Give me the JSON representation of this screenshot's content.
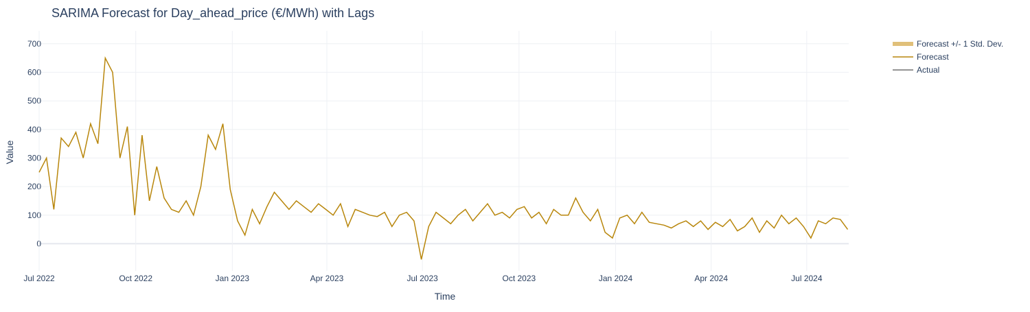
{
  "chart_data": {
    "type": "line",
    "title": "SARIMA Forecast for Day_ahead_price (€/MWh) with Lags",
    "x_label": "Time",
    "y_label": "Value",
    "x": [
      "2022-07-01",
      "2022-07-08",
      "2022-07-15",
      "2022-07-22",
      "2022-07-29",
      "2022-08-05",
      "2022-08-12",
      "2022-08-19",
      "2022-08-26",
      "2022-09-02",
      "2022-09-09",
      "2022-09-16",
      "2022-09-23",
      "2022-09-30",
      "2022-10-07",
      "2022-10-14",
      "2022-10-21",
      "2022-10-28",
      "2022-11-04",
      "2022-11-11",
      "2022-11-18",
      "2022-11-25",
      "2022-12-02",
      "2022-12-09",
      "2022-12-16",
      "2022-12-23",
      "2022-12-30",
      "2023-01-06",
      "2023-01-13",
      "2023-01-20",
      "2023-01-27",
      "2023-02-03",
      "2023-02-10",
      "2023-02-17",
      "2023-02-24",
      "2023-03-03",
      "2023-03-10",
      "2023-03-17",
      "2023-03-24",
      "2023-03-31",
      "2023-04-07",
      "2023-04-14",
      "2023-04-21",
      "2023-04-28",
      "2023-05-05",
      "2023-05-12",
      "2023-05-19",
      "2023-05-26",
      "2023-06-02",
      "2023-06-09",
      "2023-06-16",
      "2023-06-23",
      "2023-06-30",
      "2023-07-07",
      "2023-07-14",
      "2023-07-21",
      "2023-07-28",
      "2023-08-04",
      "2023-08-11",
      "2023-08-18",
      "2023-08-25",
      "2023-09-01",
      "2023-09-08",
      "2023-09-15",
      "2023-09-22",
      "2023-09-29",
      "2023-10-06",
      "2023-10-13",
      "2023-10-20",
      "2023-10-27",
      "2023-11-03",
      "2023-11-10",
      "2023-11-17",
      "2023-11-24",
      "2023-12-01",
      "2023-12-08",
      "2023-12-15",
      "2023-12-22",
      "2023-12-29",
      "2024-01-05",
      "2024-01-12",
      "2024-01-19",
      "2024-01-26",
      "2024-02-02",
      "2024-02-09",
      "2024-02-16",
      "2024-02-23",
      "2024-03-01",
      "2024-03-08",
      "2024-03-15",
      "2024-03-22",
      "2024-03-29",
      "2024-04-05",
      "2024-04-12",
      "2024-04-19",
      "2024-04-26",
      "2024-05-03",
      "2024-05-10",
      "2024-05-17",
      "2024-05-24",
      "2024-05-31",
      "2024-06-07",
      "2024-06-14",
      "2024-06-21",
      "2024-06-28",
      "2024-07-05",
      "2024-07-12",
      "2024-07-19",
      "2024-07-26",
      "2024-08-02",
      "2024-08-09"
    ],
    "series": [
      {
        "name": "Forecast +/- 1 Std. Dev.",
        "color": "#e0c07a"
      },
      {
        "name": "Forecast",
        "color": "#b8860b",
        "values": [
          250,
          300,
          120,
          370,
          340,
          390,
          300,
          420,
          350,
          650,
          600,
          300,
          410,
          100,
          380,
          150,
          270,
          160,
          120,
          110,
          150,
          100,
          200,
          380,
          330,
          420,
          190,
          80,
          30,
          120,
          70,
          130,
          180,
          150,
          120,
          150,
          130,
          110,
          140,
          120,
          100,
          140,
          60,
          120,
          110,
          100,
          95,
          110,
          60,
          100,
          110,
          80,
          -55,
          60,
          110,
          90,
          70,
          100,
          120,
          80,
          110,
          140,
          100,
          110,
          90,
          120,
          130,
          90,
          110,
          70,
          120,
          100,
          100,
          160,
          110,
          80,
          120,
          40,
          20,
          90,
          100,
          70,
          110,
          75,
          70,
          65,
          55,
          70,
          80,
          60,
          80,
          50,
          75,
          60,
          85,
          45,
          60,
          90,
          40,
          80,
          55,
          100,
          70,
          90,
          60,
          20,
          80,
          70,
          90,
          85,
          50
        ]
      },
      {
        "name": "Actual",
        "color": "#2a2a2a"
      }
    ],
    "xlim": [
      "2022-07-01",
      "2024-08-10"
    ],
    "xticks": [
      {
        "value": "2022-07-01",
        "label": "Jul 2022"
      },
      {
        "value": "2022-10-01",
        "label": "Oct 2022"
      },
      {
        "value": "2023-01-01",
        "label": "Jan 2023"
      },
      {
        "value": "2023-04-01",
        "label": "Apr 2023"
      },
      {
        "value": "2023-07-01",
        "label": "Jul 2023"
      },
      {
        "value": "2023-10-01",
        "label": "Oct 2023"
      },
      {
        "value": "2024-01-01",
        "label": "Jan 2024"
      },
      {
        "value": "2024-04-01",
        "label": "Apr 2024"
      },
      {
        "value": "2024-07-01",
        "label": "Jul 2024"
      }
    ],
    "ylim": [
      -95,
      745
    ],
    "yticks": [
      0,
      100,
      200,
      300,
      400,
      500,
      600,
      700
    ],
    "grid": true
  }
}
